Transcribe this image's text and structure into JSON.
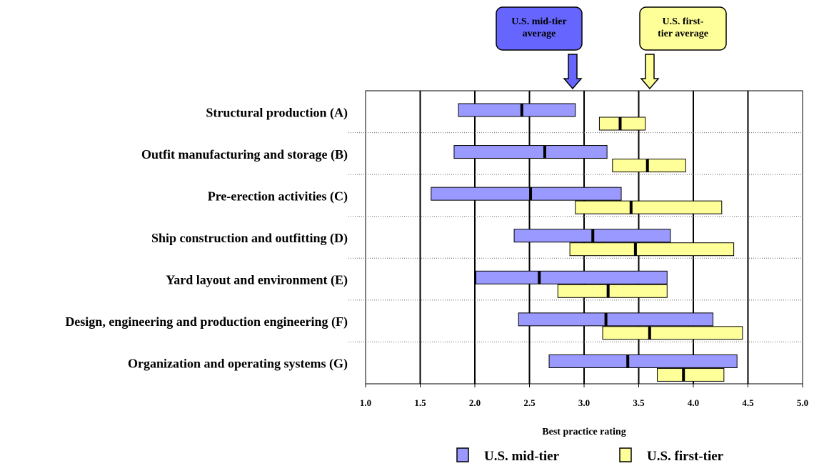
{
  "chart_data": {
    "type": "range-bar",
    "xlabel": "Best practice rating",
    "xlim": [
      1.0,
      5.0
    ],
    "xticks": [
      "1.0",
      "1.5",
      "2.0",
      "2.5",
      "3.0",
      "3.5",
      "4.0",
      "4.5",
      "5.0"
    ],
    "grid": "vertical",
    "legend_position": "bottom",
    "categories": [
      "Structural production (A)",
      "Outfit manufacturing and storage (B)",
      "Pre-erection activities (C)",
      "Ship construction and outfitting (D)",
      "Yard layout and environment (E)",
      "Design, engineering and production engineering (F)",
      "Organization and operating systems (G)"
    ],
    "series": [
      {
        "name": "U.S. mid-tier",
        "color": "#9999ff",
        "low": [
          1.85,
          1.81,
          1.6,
          2.36,
          2.01,
          2.4,
          2.68
        ],
        "mid": [
          2.43,
          2.64,
          2.51,
          3.08,
          2.59,
          3.2,
          3.4
        ],
        "high": [
          2.92,
          3.21,
          3.34,
          3.79,
          3.76,
          4.18,
          4.4
        ]
      },
      {
        "name": "U.S. first-tier",
        "color": "#ffff99",
        "low": [
          3.14,
          3.26,
          2.92,
          2.87,
          2.76,
          3.17,
          3.67
        ],
        "mid": [
          3.33,
          3.58,
          3.43,
          3.47,
          3.22,
          3.6,
          3.91
        ],
        "high": [
          3.56,
          3.93,
          4.26,
          4.37,
          3.76,
          4.45,
          4.28
        ]
      }
    ],
    "annotations": [
      {
        "text": "U.S. mid-tier average",
        "value": 2.9,
        "color": "#6666ff"
      },
      {
        "text": "U.S. first-tier average",
        "value": 3.6,
        "color": "#ffff99"
      }
    ]
  }
}
